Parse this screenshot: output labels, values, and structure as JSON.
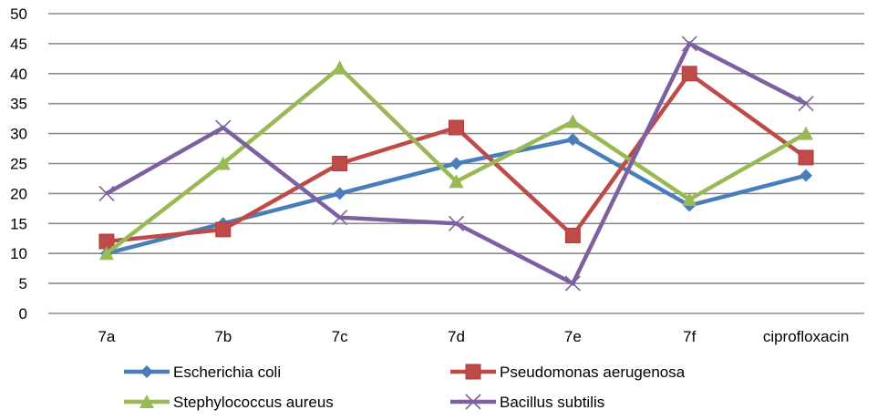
{
  "chart_data": {
    "type": "line",
    "title": "",
    "xlabel": "",
    "ylabel": "",
    "categories": [
      "7a",
      "7b",
      "7c",
      "7d",
      "7e",
      "7f",
      "ciprofloxacin"
    ],
    "ylim": [
      0,
      50
    ],
    "yticks": [
      0,
      5,
      10,
      15,
      20,
      25,
      30,
      35,
      40,
      45,
      50
    ],
    "grid": true,
    "legend_position": "bottom",
    "series": [
      {
        "name": "Escherichia coli",
        "color": "#4a7ebb",
        "marker": "diamond",
        "values": [
          10,
          15,
          20,
          25,
          29,
          18,
          23
        ]
      },
      {
        "name": "Pseudomonas aerugenosa",
        "color": "#be4b48",
        "marker": "square",
        "values": [
          12,
          14,
          25,
          31,
          13,
          40,
          26
        ]
      },
      {
        "name": "Stephylococcus aureus",
        "color": "#98b954",
        "marker": "triangle",
        "values": [
          10,
          25,
          41,
          22,
          32,
          19,
          30
        ]
      },
      {
        "name": "Bacillus subtilis",
        "color": "#7d60a0",
        "marker": "x",
        "values": [
          20,
          31,
          16,
          15,
          5,
          45,
          35
        ]
      }
    ]
  }
}
